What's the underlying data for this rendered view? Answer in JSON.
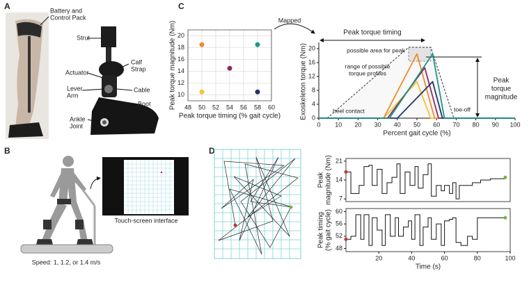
{
  "panels": [
    "A",
    "B",
    "C",
    "D"
  ],
  "panel_a": {
    "labels": [
      [
        "Battery and",
        "Control Pack"
      ],
      [
        "Strut"
      ],
      [
        "Calf",
        "Strap"
      ],
      [
        "Actuator"
      ],
      [
        "Cable"
      ],
      [
        "Lever",
        "Arm"
      ],
      [
        "Boot"
      ],
      [
        "Ankle",
        "Joint"
      ]
    ]
  },
  "panel_b": {
    "screen_caption": "Touch-screen interface",
    "speed": "Speed: 1, 1.2, or 1.4 m/s"
  },
  "panel_c": {
    "mapped": "Mapped",
    "peak_timing": "Peak torque timing",
    "possible_area": "possible area for peak",
    "range_of_profiles": [
      "range of possible",
      "torque profiles"
    ],
    "heel_contact": "heel contact",
    "toe_off": "toe-off",
    "peak_magnitude": [
      "Peak",
      "torque",
      "magnitude"
    ]
  },
  "chart_data": [
    {
      "type": "scatter",
      "xlabel": "Peak torque timing (% gait cycle)",
      "ylabel": "Peak torque magnitude (Nm)",
      "x": [
        50,
        58,
        54,
        50,
        58
      ],
      "values": [
        18.5,
        18.5,
        14.5,
        10.5,
        10.5
      ],
      "colors": [
        "#ef8a2a",
        "#1b9688",
        "#8c2d64",
        "#f6c433",
        "#1f3564"
      ],
      "xlim": [
        48,
        60
      ],
      "ylim": [
        9,
        21
      ],
      "xticks": [
        48,
        50,
        52,
        54,
        56,
        58,
        60
      ],
      "yticks": [
        10,
        12,
        14,
        16,
        18,
        20
      ],
      "grid": true
    },
    {
      "type": "line",
      "xlabel": "Percent gait cycle (%)",
      "ylabel": "Exoskeleton torque (Nm)",
      "series": [
        {
          "color": "#f6c433",
          "x": [
            0,
            33,
            50,
            57,
            100
          ],
          "values": [
            0,
            0,
            10.5,
            0,
            0
          ]
        },
        {
          "color": "#ef8a2a",
          "x": [
            0,
            33,
            50,
            59,
            100
          ],
          "values": [
            0,
            0,
            18.5,
            0,
            0
          ]
        },
        {
          "color": "#8c2d64",
          "x": [
            0,
            35,
            54,
            61,
            100
          ],
          "values": [
            0,
            0,
            14.5,
            0,
            0
          ]
        },
        {
          "color": "#1f3564",
          "x": [
            0,
            40,
            58,
            63,
            100
          ],
          "values": [
            0,
            0,
            10.5,
            0,
            0
          ]
        },
        {
          "color": "#1b9688",
          "x": [
            0,
            36,
            58,
            64,
            100
          ],
          "values": [
            0,
            0,
            18.5,
            0,
            0
          ]
        }
      ],
      "xlim": [
        0,
        100
      ],
      "ylim": [
        0,
        21
      ],
      "xticks": [
        0,
        10,
        20,
        30,
        40,
        50,
        60,
        70,
        80,
        90,
        100
      ],
      "yticks": [
        0,
        4,
        8,
        12,
        16,
        20
      ],
      "grid": false
    },
    {
      "type": "step",
      "ylabel": [
        "Peak",
        "magnitude (Nm)"
      ],
      "color": "#111",
      "marker_colors": [
        "#c0392b",
        "#7cb342"
      ],
      "x": [
        0,
        3,
        8,
        11,
        14,
        16,
        19,
        22,
        25,
        28,
        31,
        33,
        36,
        39,
        42,
        44,
        47,
        50,
        52,
        55,
        58,
        60,
        63,
        65,
        67,
        69,
        72,
        77,
        82,
        88,
        97
      ],
      "values": [
        17,
        9,
        12,
        19,
        19.5,
        12,
        18,
        9,
        13,
        15,
        20,
        9,
        17,
        12,
        19,
        11,
        16,
        20,
        8,
        12,
        10,
        12,
        9,
        13,
        7,
        12,
        12,
        13,
        14,
        14.5,
        15
      ],
      "xlim": [
        0,
        100
      ],
      "ylim": [
        6,
        22
      ],
      "yticks": [
        7,
        14,
        21
      ],
      "grid": false
    },
    {
      "type": "step",
      "xlabel": "Time (s)",
      "ylabel": [
        "Peak timing",
        "(% gait cycle)"
      ],
      "color": "#111",
      "marker_colors": [
        "#c0392b",
        "#7cb342"
      ],
      "x": [
        0,
        3,
        6,
        9,
        11,
        14,
        16,
        19,
        22,
        24,
        27,
        30,
        32,
        35,
        38,
        40,
        42,
        45,
        47,
        50,
        52,
        55,
        58,
        60,
        63,
        65,
        67,
        70,
        74,
        77,
        80,
        97
      ],
      "values": [
        51,
        52,
        59,
        51,
        59,
        49,
        58,
        54,
        49,
        59,
        52,
        58,
        52,
        55,
        57,
        51,
        59,
        49,
        55,
        58,
        51,
        56,
        49,
        57,
        57.5,
        58,
        50,
        49,
        52,
        51,
        58,
        58
      ],
      "xlim": [
        0,
        100
      ],
      "ylim": [
        47,
        61
      ],
      "xticks": [
        20,
        40,
        60,
        80,
        100
      ],
      "yticks": [
        48,
        52,
        56,
        60
      ],
      "grid": false
    }
  ]
}
